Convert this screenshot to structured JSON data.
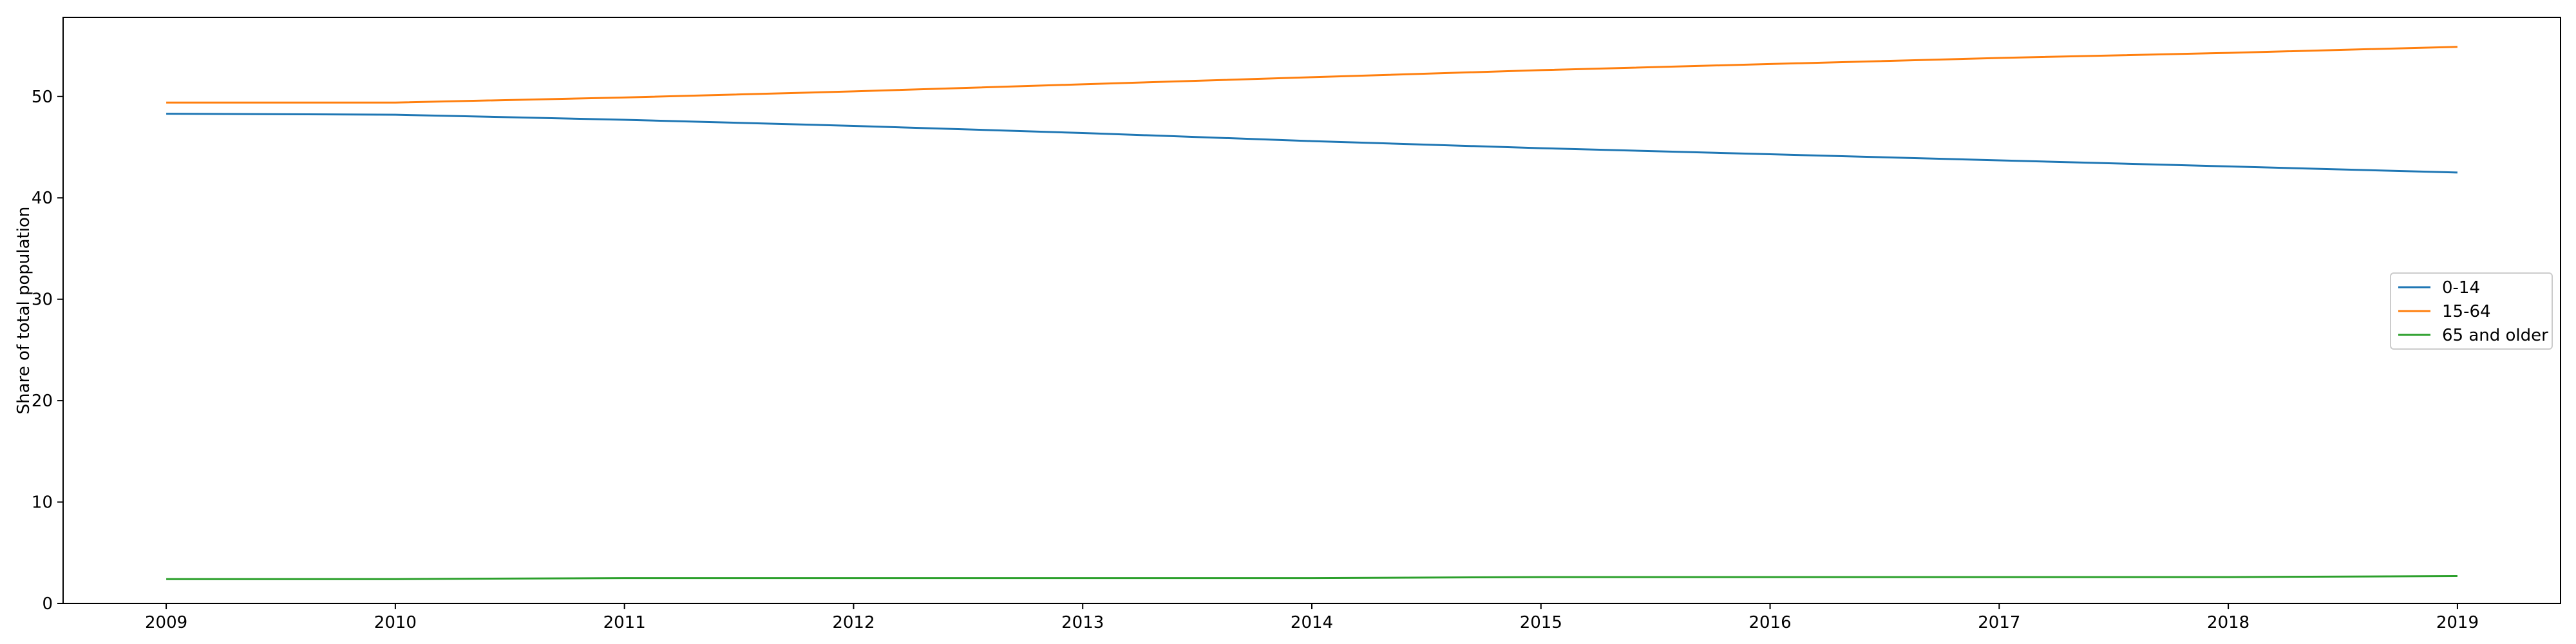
{
  "chart_data": {
    "type": "line",
    "x": [
      2009,
      2010,
      2011,
      2012,
      2013,
      2014,
      2015,
      2016,
      2017,
      2018,
      2019
    ],
    "ylabel": "Share of total population",
    "xlabel": "",
    "xlim": [
      2008.55,
      2019.45
    ],
    "ylim": [
      0,
      57.8
    ],
    "xticks": [
      "2009",
      "2010",
      "2011",
      "2012",
      "2013",
      "2014",
      "2015",
      "2016",
      "2017",
      "2018",
      "2019"
    ],
    "yticks": [
      "0",
      "10",
      "20",
      "30",
      "40",
      "50"
    ],
    "grid": false,
    "legend_position": "center-right",
    "series": [
      {
        "name": "0-14",
        "color": "#1f77b4",
        "values": [
          48.3,
          48.2,
          47.7,
          47.1,
          46.4,
          45.6,
          44.9,
          44.3,
          43.7,
          43.1,
          42.5
        ]
      },
      {
        "name": "15-64",
        "color": "#ff7f0e",
        "values": [
          49.4,
          49.4,
          49.9,
          50.5,
          51.2,
          51.9,
          52.6,
          53.2,
          53.8,
          54.3,
          54.9
        ]
      },
      {
        "name": "65 and older",
        "color": "#2ca02c",
        "values": [
          2.4,
          2.4,
          2.5,
          2.5,
          2.5,
          2.5,
          2.6,
          2.6,
          2.6,
          2.6,
          2.7
        ]
      }
    ]
  }
}
